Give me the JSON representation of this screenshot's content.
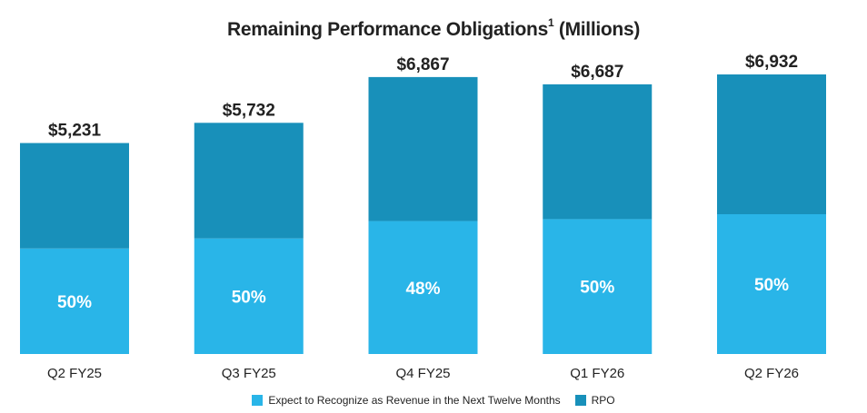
{
  "chart_data": {
    "type": "bar",
    "title": "Remaining Performance Obligations",
    "title_sup": "1",
    "title_suffix": " (Millions)",
    "categories": [
      "Q2 FY25",
      "Q3 FY25",
      "Q4 FY25",
      "Q1 FY26",
      "Q2 FY26"
    ],
    "totals": [
      5231,
      5732,
      6867,
      6687,
      6932
    ],
    "total_labels": [
      "$5,231",
      "$5,732",
      "$6,867",
      "$6,687",
      "$6,932"
    ],
    "series": [
      {
        "name": "Expect to Recognize as Revenue in the Next Twelve Months",
        "color": "#29B5E8",
        "percent_labels": [
          "50%",
          "50%",
          "48%",
          "50%",
          "50%"
        ],
        "values": [
          2616,
          2866,
          3296,
          3344,
          3466
        ]
      },
      {
        "name": "RPO",
        "color": "#1890BA",
        "values": [
          2615,
          2866,
          3571,
          3343,
          3466
        ]
      }
    ],
    "ylim": [
      0,
      6932
    ]
  }
}
